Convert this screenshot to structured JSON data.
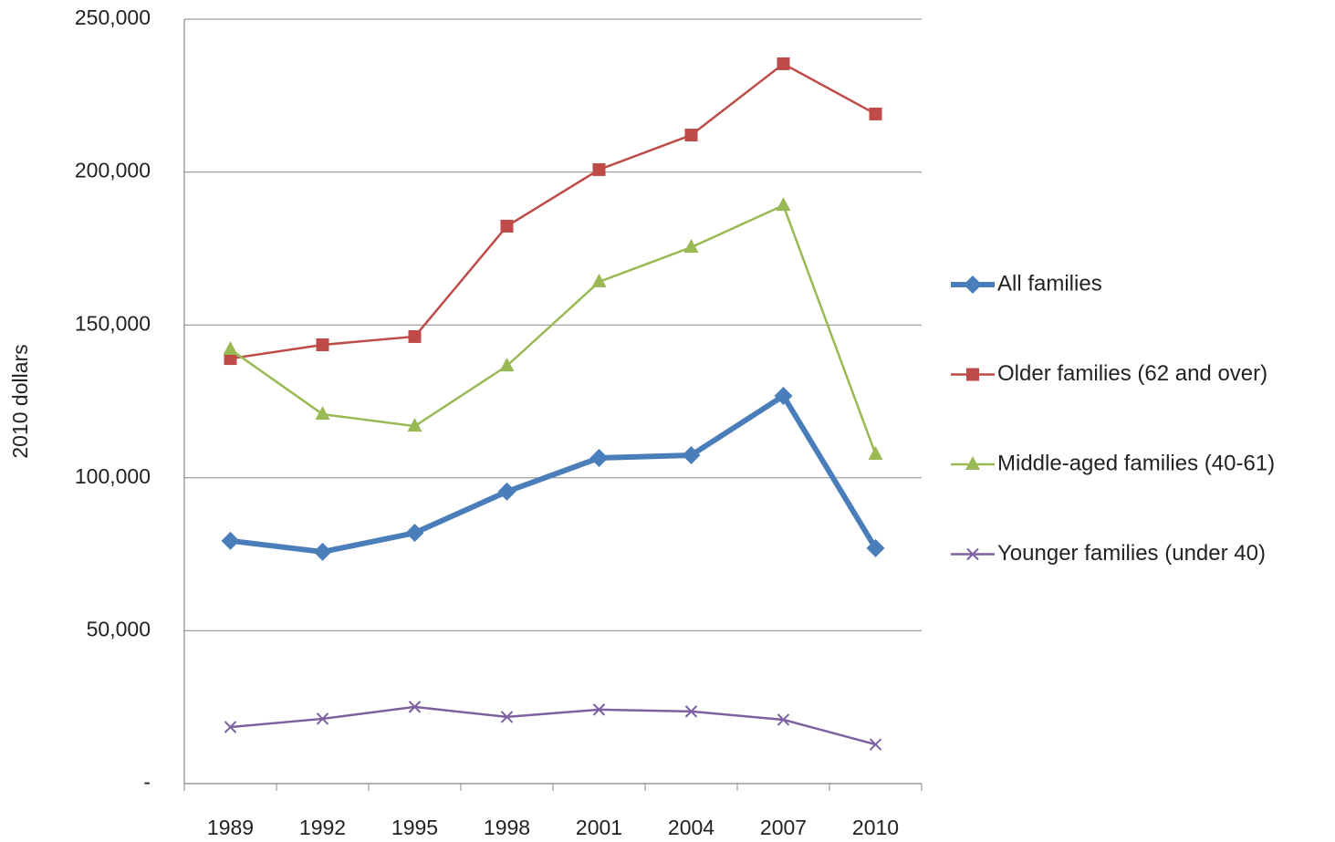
{
  "chart_data": {
    "type": "line",
    "y_label": "2010 dollars",
    "categories": [
      "1989",
      "1992",
      "1995",
      "1998",
      "2001",
      "2004",
      "2007",
      "2010"
    ],
    "series": [
      {
        "name": "All families",
        "color": "#4a7ebb",
        "marker": "diamond",
        "width": 6,
        "values": [
          79400,
          75800,
          82000,
          95500,
          106500,
          107400,
          126800,
          77000
        ]
      },
      {
        "name": "Older families (62 and over)",
        "color": "#be4b48",
        "marker": "square",
        "width": 2.5,
        "values": [
          139000,
          143500,
          146200,
          182300,
          200800,
          212100,
          235400,
          219000
        ]
      },
      {
        "name": "Middle-aged families (40-61)",
        "color": "#98b954",
        "marker": "triangle",
        "width": 2.5,
        "values": [
          142000,
          120800,
          116900,
          136600,
          164100,
          175400,
          189100,
          107700
        ]
      },
      {
        "name": "Younger families (under 40)",
        "color": "#7d60a0",
        "marker": "x",
        "width": 2.5,
        "values": [
          18500,
          21200,
          25100,
          21800,
          24200,
          23600,
          20900,
          12800
        ]
      }
    ],
    "ylim": [
      0,
      250000
    ],
    "yticks": [
      {
        "value": 0,
        "label": "-"
      },
      {
        "value": 50000,
        "label": "50,000"
      },
      {
        "value": 100000,
        "label": "100,000"
      },
      {
        "value": 150000,
        "label": "150,000"
      },
      {
        "value": 200000,
        "label": "200,000"
      },
      {
        "value": 250000,
        "label": "250,000"
      }
    ],
    "grid": true,
    "legend": "right"
  }
}
